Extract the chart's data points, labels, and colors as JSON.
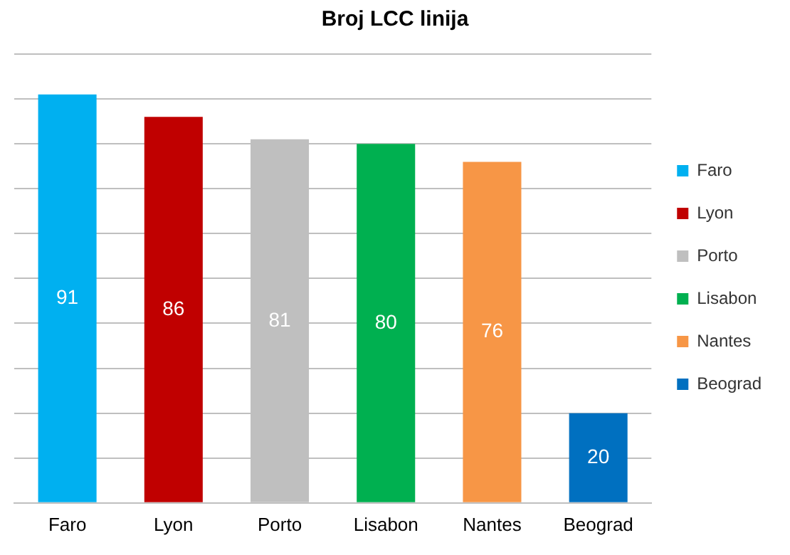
{
  "chart_data": {
    "type": "bar",
    "title": "Broj LCC linija",
    "categories": [
      "Faro",
      "Lyon",
      "Porto",
      "Lisabon",
      "Nantes",
      "Beograd"
    ],
    "series": [
      {
        "name": "Faro",
        "color": "#00b0f0",
        "values": [
          91,
          null,
          null,
          null,
          null,
          null
        ]
      },
      {
        "name": "Lyon",
        "color": "#c00000",
        "values": [
          null,
          86,
          null,
          null,
          null,
          null
        ]
      },
      {
        "name": "Porto",
        "color": "#bfbfbf",
        "values": [
          null,
          null,
          81,
          null,
          null,
          null
        ]
      },
      {
        "name": "Lisabon",
        "color": "#00b050",
        "values": [
          null,
          null,
          null,
          80,
          null,
          null
        ]
      },
      {
        "name": "Nantes",
        "color": "#f79646",
        "values": [
          null,
          null,
          null,
          null,
          76,
          null
        ]
      },
      {
        "name": "Beograd",
        "color": "#0070c0",
        "values": [
          null,
          null,
          null,
          null,
          null,
          20
        ]
      }
    ],
    "ylim": [
      0,
      100
    ],
    "yticks": [
      0,
      10,
      20,
      30,
      40,
      50,
      60,
      70,
      80,
      90,
      100
    ],
    "grid": "y",
    "legend": "right",
    "tick_labels": "x",
    "data_labels": true
  }
}
